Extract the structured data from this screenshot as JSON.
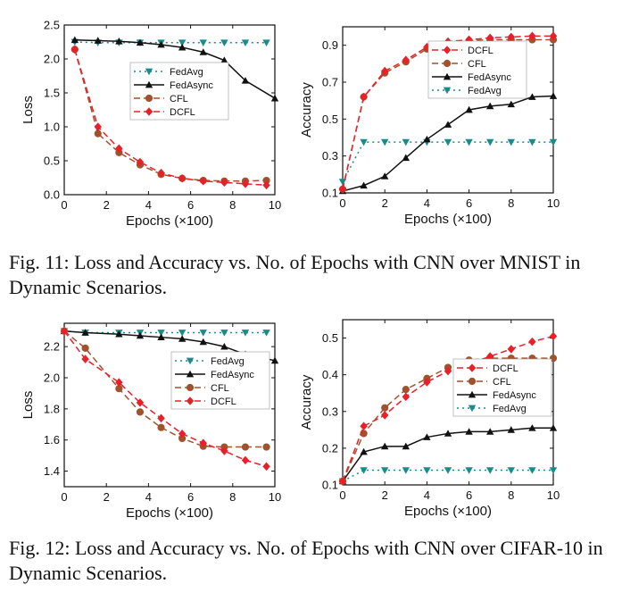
{
  "captions": {
    "fig11": "Fig. 11: Loss and Accuracy vs. No. of Epochs with CNN over MNIST in Dynamic Scenarios.",
    "fig12": "Fig. 12: Loss and Accuracy vs. No. of Epochs with CNN over CIFAR-10 in Dynamic Scenarios."
  },
  "styles": {
    "FedAvg": {
      "color": "#1a8a8a",
      "dash": "2,4",
      "marker": "tri-down"
    },
    "FedAsync": {
      "color": "#111111",
      "dash": "",
      "marker": "tri-up"
    },
    "CFL": {
      "color": "#a0522d",
      "dash": "7,4",
      "marker": "circle"
    },
    "DCFL": {
      "color": "#e8202a",
      "dash": "7,4",
      "marker": "diamond"
    }
  },
  "chart_data": [
    {
      "type": "line",
      "xlabel": "Epochs (×100)",
      "ylabel": "Loss",
      "xlim": [
        0,
        10
      ],
      "ylim": [
        0,
        2.5
      ],
      "xticks": [
        0,
        2,
        4,
        6,
        8,
        10
      ],
      "yticks": [
        0.0,
        0.5,
        1.0,
        1.5,
        2.0,
        2.5
      ],
      "ytick_labels": [
        "0.0",
        "0.5",
        "1.0",
        "1.5",
        "2.0",
        "2.5"
      ],
      "legend_position": "center-right",
      "legend_order": [
        "FedAvg",
        "FedAsync",
        "CFL",
        "DCFL"
      ],
      "series": [
        {
          "name": "FedAvg",
          "x": [
            0.5,
            1.6,
            2.6,
            3.6,
            4.6,
            5.6,
            6.6,
            7.6,
            8.6,
            9.6
          ],
          "y": [
            2.25,
            2.24,
            2.24,
            2.24,
            2.24,
            2.24,
            2.24,
            2.24,
            2.24,
            2.24
          ]
        },
        {
          "name": "FedAsync",
          "x": [
            0.5,
            1.6,
            2.6,
            3.6,
            4.6,
            5.6,
            6.6,
            7.6,
            8.6,
            10
          ],
          "y": [
            2.28,
            2.27,
            2.26,
            2.24,
            2.21,
            2.17,
            2.1,
            1.98,
            1.68,
            1.42
          ]
        },
        {
          "name": "CFL",
          "x": [
            0.5,
            1.6,
            2.6,
            3.6,
            4.6,
            5.6,
            6.6,
            7.6,
            8.6,
            9.6
          ],
          "y": [
            2.14,
            0.9,
            0.62,
            0.44,
            0.3,
            0.24,
            0.21,
            0.2,
            0.2,
            0.21
          ]
        },
        {
          "name": "DCFL",
          "x": [
            0.5,
            1.6,
            2.6,
            3.6,
            4.6,
            5.6,
            6.6,
            7.6,
            8.6,
            9.6
          ],
          "y": [
            2.14,
            1.0,
            0.68,
            0.48,
            0.32,
            0.24,
            0.2,
            0.18,
            0.16,
            0.14
          ]
        }
      ]
    },
    {
      "type": "line",
      "xlabel": "Epochs (×100)",
      "ylabel": "Accuracy",
      "xlim": [
        0,
        10
      ],
      "ylim": [
        0.1,
        1.0
      ],
      "xticks": [
        0,
        2,
        4,
        6,
        8,
        10
      ],
      "yticks": [
        0.1,
        0.3,
        0.5,
        0.7,
        0.9
      ],
      "ytick_labels": [
        "0.1",
        "0.3",
        "0.5",
        "0.7",
        "0.9"
      ],
      "legend_position": "top-center",
      "legend_order": [
        "DCFL",
        "CFL",
        "FedAsync",
        "FedAvg"
      ],
      "series": [
        {
          "name": "FedAvg",
          "x": [
            0,
            1,
            2,
            3,
            4,
            5,
            6,
            7,
            8,
            9,
            10
          ],
          "y": [
            0.16,
            0.375,
            0.375,
            0.375,
            0.375,
            0.375,
            0.375,
            0.375,
            0.375,
            0.375,
            0.375
          ]
        },
        {
          "name": "FedAsync",
          "x": [
            0,
            1,
            2,
            3,
            4,
            5,
            6,
            7,
            8,
            9,
            10
          ],
          "y": [
            0.11,
            0.14,
            0.19,
            0.29,
            0.39,
            0.47,
            0.55,
            0.57,
            0.58,
            0.62,
            0.625
          ]
        },
        {
          "name": "CFL",
          "x": [
            0,
            1,
            2,
            3,
            4,
            5,
            6,
            7,
            8,
            9,
            10
          ],
          "y": [
            0.12,
            0.62,
            0.75,
            0.81,
            0.88,
            0.91,
            0.925,
            0.93,
            0.93,
            0.93,
            0.93
          ]
        },
        {
          "name": "DCFL",
          "x": [
            0,
            1,
            2,
            3,
            4,
            5,
            6,
            7,
            8,
            9,
            10
          ],
          "y": [
            0.12,
            0.62,
            0.76,
            0.82,
            0.89,
            0.92,
            0.93,
            0.94,
            0.945,
            0.95,
            0.95
          ]
        }
      ]
    },
    {
      "type": "line",
      "xlabel": "Epochs (×100)",
      "ylabel": "Loss",
      "xlim": [
        0,
        10
      ],
      "ylim": [
        1.3,
        2.35
      ],
      "xticks": [
        0,
        2,
        4,
        6,
        8,
        10
      ],
      "yticks": [
        1.4,
        1.6,
        1.8,
        2.0,
        2.2
      ],
      "ytick_labels": [
        "1.4",
        "1.6",
        "1.8",
        "2.0",
        "2.2"
      ],
      "legend_position": "center-right",
      "legend_order": [
        "FedAvg",
        "FedAsync",
        "CFL",
        "DCFL"
      ],
      "series": [
        {
          "name": "FedAvg",
          "x": [
            0,
            1,
            2.6,
            3.6,
            4.6,
            5.6,
            6.6,
            7.6,
            8.6,
            9.6
          ],
          "y": [
            2.3,
            2.29,
            2.29,
            2.29,
            2.29,
            2.29,
            2.29,
            2.29,
            2.29,
            2.29
          ]
        },
        {
          "name": "FedAsync",
          "x": [
            0,
            1,
            2.6,
            3.6,
            4.6,
            5.6,
            6.6,
            7.6,
            8.6,
            10
          ],
          "y": [
            2.3,
            2.29,
            2.28,
            2.27,
            2.26,
            2.25,
            2.23,
            2.2,
            2.15,
            2.11
          ]
        },
        {
          "name": "CFL",
          "x": [
            0,
            1,
            2.6,
            3.6,
            4.6,
            5.6,
            6.6,
            7.6,
            8.6,
            9.6
          ],
          "y": [
            2.3,
            2.19,
            1.93,
            1.78,
            1.68,
            1.61,
            1.56,
            1.555,
            1.555,
            1.555
          ]
        },
        {
          "name": "DCFL",
          "x": [
            0,
            1,
            2.6,
            3.6,
            4.6,
            5.6,
            6.6,
            7.6,
            8.6,
            9.6
          ],
          "y": [
            2.3,
            2.12,
            1.97,
            1.84,
            1.74,
            1.64,
            1.58,
            1.53,
            1.47,
            1.43
          ]
        }
      ]
    },
    {
      "type": "line",
      "xlabel": "Epochs (×100)",
      "ylabel": "Accuracy",
      "xlim": [
        0,
        10
      ],
      "ylim": [
        0.1,
        0.55
      ],
      "xticks": [
        0,
        2,
        4,
        6,
        8,
        10
      ],
      "yticks": [
        0.1,
        0.2,
        0.3,
        0.4,
        0.5
      ],
      "ytick_labels": [
        "0.1",
        "0.2",
        "0.3",
        "0.4",
        "0.5"
      ],
      "legend_position": "center-right",
      "legend_order": [
        "DCFL",
        "CFL",
        "FedAsync",
        "FedAvg"
      ],
      "series": [
        {
          "name": "FedAvg",
          "x": [
            0,
            1,
            2,
            3,
            4,
            5,
            6,
            7,
            8,
            9,
            10
          ],
          "y": [
            0.11,
            0.14,
            0.14,
            0.14,
            0.14,
            0.14,
            0.14,
            0.14,
            0.14,
            0.14,
            0.14
          ]
        },
        {
          "name": "FedAsync",
          "x": [
            0,
            1,
            2,
            3,
            4,
            5,
            6,
            7,
            8,
            9,
            10
          ],
          "y": [
            0.11,
            0.19,
            0.205,
            0.205,
            0.23,
            0.24,
            0.245,
            0.245,
            0.25,
            0.255,
            0.255
          ]
        },
        {
          "name": "CFL",
          "x": [
            0,
            1,
            2,
            3,
            4,
            5,
            6,
            7,
            8,
            9,
            10
          ],
          "y": [
            0.11,
            0.24,
            0.31,
            0.36,
            0.39,
            0.42,
            0.44,
            0.445,
            0.445,
            0.445,
            0.445
          ]
        },
        {
          "name": "DCFL",
          "x": [
            0,
            1,
            2,
            3,
            4,
            5,
            6,
            7,
            8,
            9,
            10
          ],
          "y": [
            0.11,
            0.26,
            0.29,
            0.34,
            0.38,
            0.41,
            0.43,
            0.45,
            0.47,
            0.49,
            0.505
          ]
        }
      ]
    }
  ]
}
